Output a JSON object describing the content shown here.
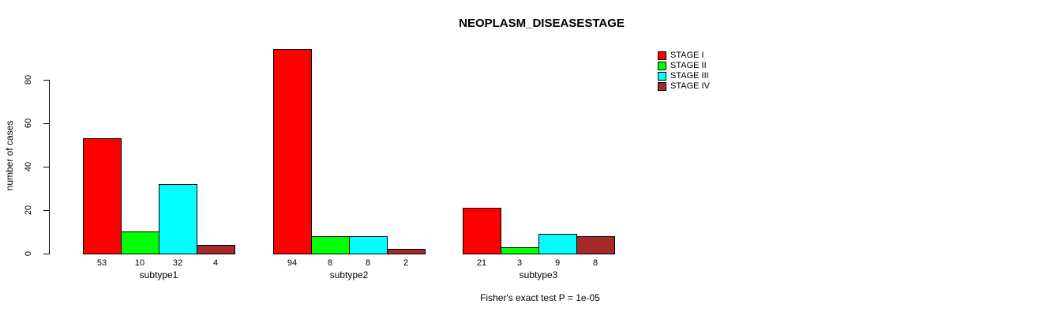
{
  "chart_data": {
    "type": "bar",
    "title": "NEOPLASM_DISEASESTAGE",
    "categories": [
      "subtype1",
      "subtype2",
      "subtype3"
    ],
    "series": [
      {
        "name": "STAGE I",
        "color": "#FF0000",
        "values": [
          53,
          94,
          21
        ]
      },
      {
        "name": "STAGE II",
        "color": "#00FF00",
        "values": [
          10,
          8,
          3
        ]
      },
      {
        "name": "STAGE III",
        "color": "#00FFFF",
        "values": [
          32,
          8,
          9
        ]
      },
      {
        "name": "STAGE IV",
        "color": "#A52A2A",
        "values": [
          4,
          2,
          8
        ]
      }
    ],
    "xlabel": "",
    "ylabel": "number of cases",
    "ylim": [
      0,
      80
    ],
    "yticks": [
      0,
      20,
      40,
      60,
      80
    ],
    "grid": false,
    "bar_value_labels": true,
    "legend_position": "top-right",
    "footnote": "Fisher's exact test P = 1e-05",
    "bar_border_color": "#000000",
    "background_color": "#FFFFFF"
  }
}
